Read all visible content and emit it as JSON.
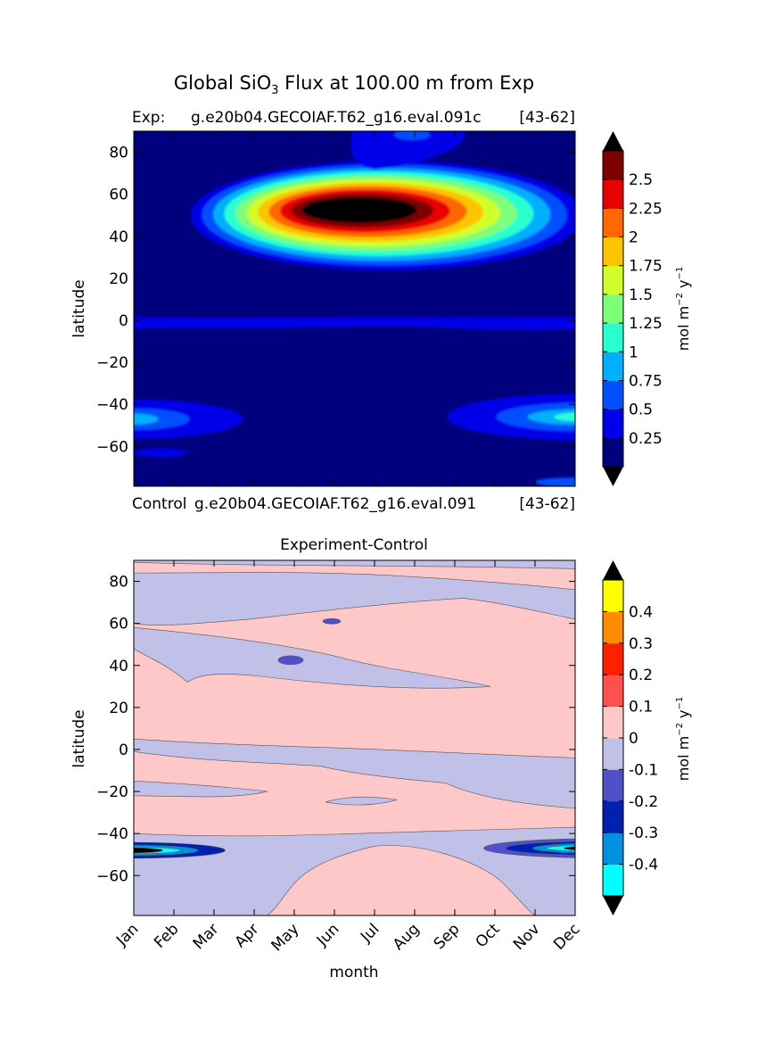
{
  "figure": {
    "title_main": "Global SiO",
    "title_sub": "3",
    "title_rest": " Flux at 100.00 m from Exp"
  },
  "chart_data": [
    {
      "type": "heatmap",
      "panel": "top",
      "left_title": "Exp:",
      "center_title": "g.e20b04.GECOIAF.T62_g16.eval.091c",
      "right_title": "[43-62]",
      "below_label_left": "Control",
      "below_label_center": "g.e20b04.GECOIAF.T62_g16.eval.091",
      "below_label_right": "[43-62]",
      "xlabel": "",
      "ylabel": "latitude",
      "xlim": [
        0,
        11
      ],
      "ylim": [
        -79,
        90
      ],
      "yticks": [
        80,
        60,
        40,
        20,
        0,
        -20,
        -40,
        -60
      ],
      "colorbar": {
        "label_main": "mol m",
        "label_exp1": "−2",
        "label_mid": " y",
        "label_exp2": "−1",
        "levels": [
          0.25,
          0.5,
          0.75,
          1,
          1.25,
          1.5,
          1.75,
          2,
          2.25,
          2.5
        ],
        "tick_labels": [
          "0.25",
          "0.5",
          "0.75",
          "1",
          "1.25",
          "1.5",
          "1.75",
          "2",
          "2.25",
          "2.5"
        ],
        "colors": [
          "#00007f",
          "#0000e8",
          "#0050ff",
          "#00b0ff",
          "#2affd0",
          "#7dff7a",
          "#d0ff2a",
          "#ffc400",
          "#ff6800",
          "#e80000",
          "#7f0000"
        ],
        "extend_low_color": "#000000",
        "extend_high_color": "#000000"
      },
      "regions": [
        {
          "feature": "background",
          "level": 0
        },
        {
          "feature": "north_pacific_bloom",
          "month": 5.8,
          "lat": 53,
          "peak": 2.9
        },
        {
          "feature": "equatorial_band",
          "lat": 0,
          "value": 0.3
        },
        {
          "feature": "southern_ocean_early_year",
          "month": 0.5,
          "lat": -47,
          "peak": 0.6
        },
        {
          "feature": "southern_ocean_late_year",
          "month": 10.7,
          "lat": -46,
          "peak": 1.2
        }
      ]
    },
    {
      "type": "heatmap",
      "panel": "bottom",
      "center_title": "Experiment-Control",
      "xlabel": "month",
      "ylabel": "latitude",
      "xlim": [
        0,
        11
      ],
      "ylim": [
        -79,
        90
      ],
      "yticks": [
        80,
        60,
        40,
        20,
        0,
        -20,
        -40,
        -60
      ],
      "xtick_labels": [
        "Jan",
        "Feb",
        "Mar",
        "Apr",
        "May",
        "Jun",
        "Jul",
        "Aug",
        "Sep",
        "Oct",
        "Nov",
        "Dec"
      ],
      "colorbar": {
        "label_main": "mol m",
        "label_exp1": "−2",
        "label_mid": " y",
        "label_exp2": "−1",
        "levels": [
          -0.4,
          -0.3,
          -0.2,
          -0.1,
          0,
          0.1,
          0.2,
          0.3,
          0.4
        ],
        "tick_labels": [
          "-0.4",
          "-0.3",
          "-0.2",
          "-0.1",
          "0",
          "0.1",
          "0.2",
          "0.3",
          "0.4"
        ],
        "colors": [
          "#00ffff",
          "#0090e0",
          "#0020b0",
          "#5050c8",
          "#c0c0e8",
          "#ffc8c8",
          "#ff5050",
          "#ff2000",
          "#ff8c00",
          "#ffff00"
        ],
        "extend_low_color": "#000000",
        "extend_high_color": "#000000"
      },
      "regions": [
        {
          "feature": "background",
          "level": 0.05
        },
        {
          "feature": "northern_negative_band",
          "lat_range": [
            55,
            90
          ],
          "value": -0.05
        },
        {
          "feature": "southern_ocean_early_year_min",
          "month": 0.5,
          "lat": -48,
          "peak": -0.5
        },
        {
          "feature": "southern_ocean_late_year_min",
          "month": 10.5,
          "lat": -47,
          "peak": -0.5
        },
        {
          "feature": "southern_negative_band",
          "lat_range": [
            -79,
            -38
          ],
          "value": -0.05
        }
      ]
    }
  ]
}
